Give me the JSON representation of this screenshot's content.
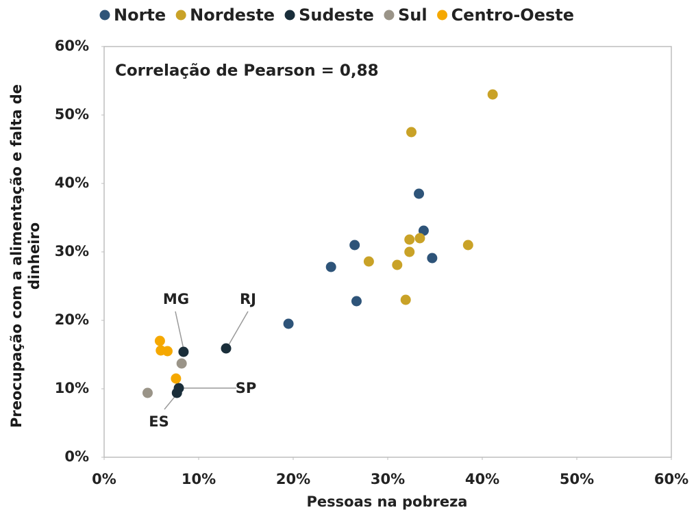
{
  "chart_data": {
    "type": "scatter",
    "xlabel": "Pessoas na pobreza",
    "ylabel": "Preocupação com a alimentação e falta de dinheiro",
    "annotations": [
      "Correlação de Pearson = 0,88",
      "MG",
      "RJ",
      "SP",
      "ES"
    ],
    "xlim": [
      0,
      60
    ],
    "ylim": [
      0,
      60
    ],
    "xticks": [
      {
        "value": 0,
        "label": "0%"
      },
      {
        "value": 10,
        "label": "10%"
      },
      {
        "value": 20,
        "label": "20%"
      },
      {
        "value": 30,
        "label": "30%"
      },
      {
        "value": 40,
        "label": "40%"
      },
      {
        "value": 50,
        "label": "50%"
      },
      {
        "value": 60,
        "label": "60%"
      }
    ],
    "yticks": [
      {
        "value": 0,
        "label": "0%"
      },
      {
        "value": 10,
        "label": "10%"
      },
      {
        "value": 20,
        "label": "20%"
      },
      {
        "value": 30,
        "label": "30%"
      },
      {
        "value": 40,
        "label": "40%"
      },
      {
        "value": 50,
        "label": "50%"
      },
      {
        "value": 60,
        "label": "60%"
      }
    ],
    "legend": "top",
    "series": [
      {
        "name": "Norte",
        "color": "#2e5479",
        "x": [
          33.3,
          33.8,
          26.5,
          34.7,
          24.0,
          26.7,
          19.5
        ],
        "values": [
          38.5,
          33.1,
          31.0,
          29.1,
          27.8,
          22.8,
          19.5
        ]
      },
      {
        "name": "Nordeste",
        "color": "#c9a227",
        "x": [
          41.1,
          32.5,
          32.3,
          33.4,
          38.5,
          32.3,
          28.0,
          31.0,
          31.9
        ],
        "values": [
          53.0,
          47.5,
          31.8,
          32.0,
          31.0,
          30.0,
          28.6,
          28.1,
          23.0
        ]
      },
      {
        "name": "Sudeste",
        "color": "#1a2e3a",
        "x": [
          8.4,
          12.9,
          7.9,
          7.7
        ],
        "values": [
          15.4,
          15.9,
          10.1,
          9.4
        ]
      },
      {
        "name": "Sul",
        "color": "#9a9488",
        "x": [
          8.2,
          4.6
        ],
        "values": [
          13.7,
          9.4
        ]
      },
      {
        "name": "Centro-Oeste",
        "color": "#f5a800",
        "x": [
          5.9,
          6.0,
          6.7,
          7.6
        ],
        "values": [
          17.0,
          15.6,
          15.5,
          11.5
        ]
      }
    ]
  }
}
